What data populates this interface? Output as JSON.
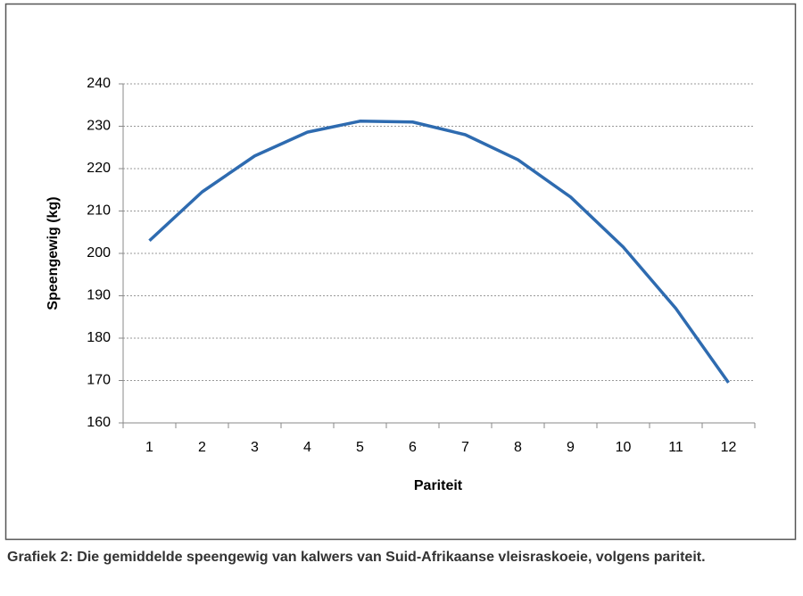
{
  "chart_data": {
    "type": "line",
    "x_label": "Pariteit",
    "y_label": "Speengewig (kg)",
    "caption": "Grafiek 2: Die gemiddelde speengewig van kalwers van Suid-Afrikaanse vleisraskoeie, volgens pariteit.",
    "categories": [
      "1",
      "2",
      "3",
      "4",
      "5",
      "6",
      "7",
      "8",
      "9",
      "10",
      "11",
      "12"
    ],
    "values": [
      203,
      214.5,
      223,
      228.6,
      231.2,
      231,
      228,
      222.1,
      213.3,
      201.5,
      187,
      169.5
    ],
    "color": "#2e6bb0",
    "ylim": [
      160,
      240
    ],
    "yticks": [
      160,
      170,
      180,
      190,
      200,
      210,
      220,
      230,
      240
    ],
    "grid": true
  }
}
